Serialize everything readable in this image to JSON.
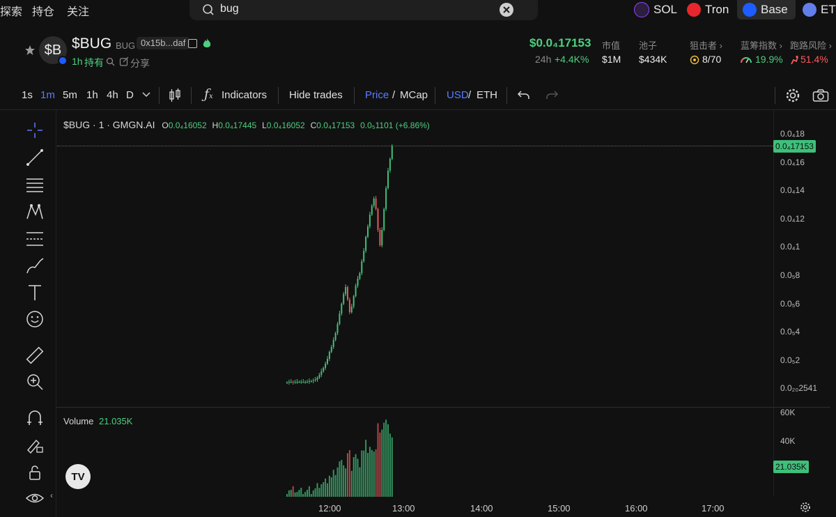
{
  "nav": {
    "items": [
      "探索",
      "持仓",
      "关注"
    ]
  },
  "search": {
    "value": "bug"
  },
  "chains": [
    {
      "label": "SOL",
      "color": "#9945ff"
    },
    {
      "label": "Tron",
      "color": "#e8262d"
    },
    {
      "label": "Base",
      "color": "#1d5cff"
    },
    {
      "label": "ETH",
      "color": "#627eea"
    }
  ],
  "token": {
    "avatar": "$B",
    "name": "$BUG",
    "symbol": "BUG",
    "address": "0x15b...daf",
    "age": "1h",
    "holders_label": "持有",
    "share_label": "分享"
  },
  "stats": {
    "price": "$0.0₄17153",
    "change_label": "24h",
    "change_value": "+4.4K%",
    "mcap_label": "市值",
    "mcap_value": "$1M",
    "pool_label": "池子",
    "pool_value": "$434K",
    "sniper_label": "狙击者",
    "sniper_value": "8/70",
    "chip_label": "蓝筹指数",
    "chip_value": "19.9%",
    "rug_label": "跑路风险",
    "rug_value": "51.4%"
  },
  "toolbar": {
    "intervals": [
      "1s",
      "1m",
      "5m",
      "1h",
      "4h",
      "D"
    ],
    "active_interval": "1m",
    "indicators": "Indicators",
    "hide_trades": "Hide trades",
    "price": "Price",
    "mcap": "MCap",
    "usd": "USD",
    "eth": "ETH"
  },
  "legend": {
    "title": "$BUG · 1 · GMGN.AI",
    "o_label": "O",
    "o": "0.0₄16052",
    "h_label": "H",
    "h": "0.0₄17445",
    "l_label": "L",
    "l": "0.0₄16052",
    "c_label": "C",
    "c": "0.0₄17153",
    "change": "0.0₅1101 (+6.86%)",
    "volume_label": "Volume",
    "volume_value": "21.035K"
  },
  "chart_data": {
    "type": "candlestick",
    "price_axis_ticks": [
      "0.0₄18",
      "0.0₄16",
      "0.0₄14",
      "0.0₄12",
      "0.0₄1",
      "0.0₅8",
      "0.0₅6",
      "0.0₅4",
      "0.0₅2",
      "0.0₂₀2541"
    ],
    "current_price_tag": "0.0₄17153",
    "volume_axis_ticks": [
      "60K",
      "40K"
    ],
    "current_volume_tag": "21.035K",
    "time_ticks": [
      "12:00",
      "13:00",
      "14:00",
      "15:00",
      "16:00",
      "17:00"
    ],
    "up_color": "#3fc07a",
    "down_color": "#e05a5a"
  }
}
